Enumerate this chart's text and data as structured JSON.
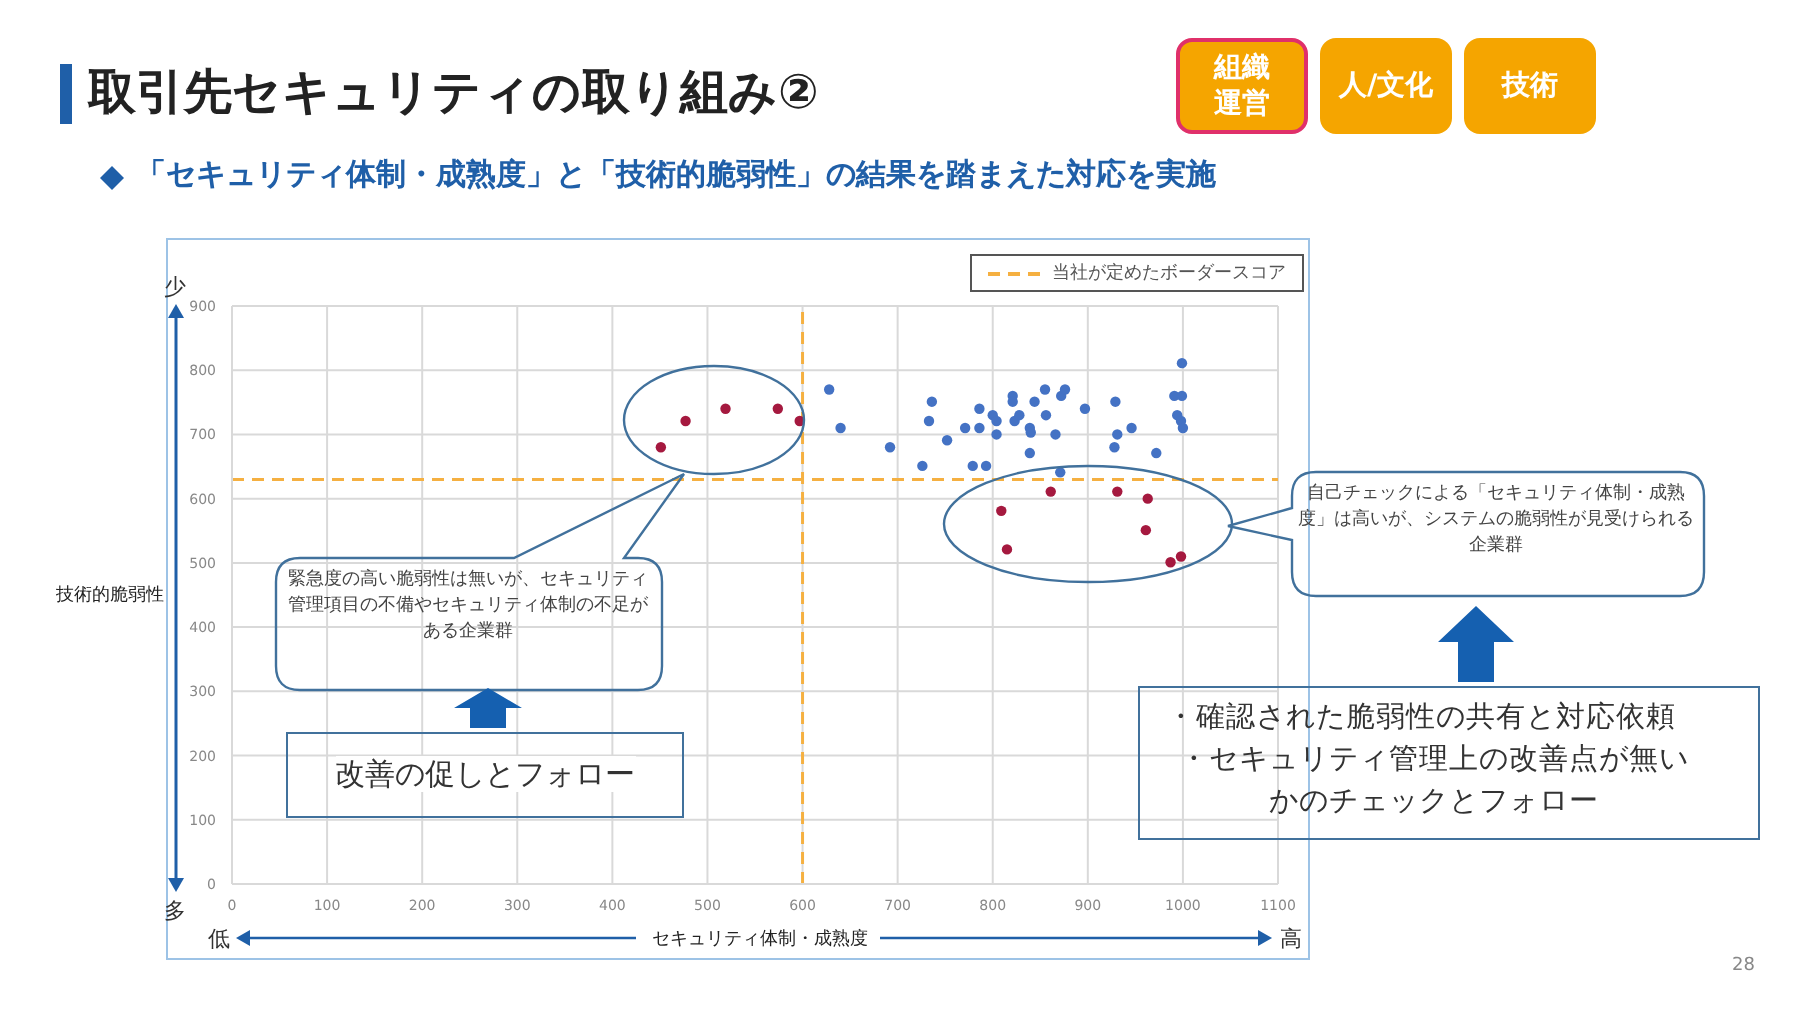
{
  "chart_data": {
    "type": "scatter",
    "title": "取引先セキュリティの取り組み②",
    "subtitle": "「セキュリティ体制・成熟度」と「技術的脆弱性」の結果を踏まえた対応を実施",
    "xlabel": "セキュリティ体制・成熟度",
    "ylabel": "技術的脆弱性",
    "legend": "top right",
    "grid": true,
    "marker": "circle",
    "xlim": [
      0,
      1100
    ],
    "xticks": [
      0,
      100,
      200,
      300,
      400,
      500,
      600,
      700,
      800,
      900,
      1000,
      1100
    ],
    "ylim": [
      0,
      900
    ],
    "yticks": [
      0,
      100,
      200,
      300,
      400,
      500,
      600,
      700,
      800,
      900
    ],
    "ref_lines": [
      {
        "axis": "x",
        "value": 600,
        "label": "当社が定めたボーダースコア",
        "color": "#f5b041",
        "line_style": "dashed"
      },
      {
        "axis": "y",
        "value": 630,
        "color": "#f5b041",
        "line_style": "dashed"
      }
    ],
    "series": [
      {
        "color": "#4472c4",
        "x": [
          628,
          640,
          692,
          726,
          736,
          733,
          752,
          771,
          786,
          786,
          779,
          793,
          800,
          804,
          804,
          821,
          821,
          823,
          828,
          844,
          839,
          840,
          839,
          855,
          856,
          866,
          872,
          876,
          871,
          897,
          929,
          931,
          928,
          946,
          972,
          999,
          991,
          999,
          994,
          998,
          1000
        ],
        "values": [
          770,
          710,
          680,
          651,
          751,
          721,
          691,
          710,
          740,
          710,
          651,
          651,
          730,
          721,
          700,
          760,
          751,
          721,
          730,
          751,
          710,
          703,
          671,
          770,
          730,
          700,
          760,
          770,
          641,
          740,
          751,
          700,
          680,
          710,
          671,
          811,
          760,
          760,
          730,
          721,
          710
        ]
      },
      {
        "color": "#a5193f",
        "x": [
          451,
          477,
          519,
          574,
          597,
          861,
          931,
          963,
          809,
          961,
          815,
          987,
          998
        ],
        "values": [
          680,
          721,
          740,
          740,
          721,
          611,
          611,
          600,
          581,
          551,
          521,
          501,
          510
        ]
      }
    ],
    "annotations": [
      "緊急度の高い脆弱性は無いが、セキュリティ管理項目の不備やセキュリティ体制の不足がある企業群",
      "改善の促しとフォロー",
      "自己チェックによる「セキュリティ体制・成熟度」は高いが、システムの脆弱性が見受けられる企業群",
      "・確認された脆弱性の共有と対応依頼",
      "・セキュリティ管理上の改善点が無いかのチェックとフォロー",
      "少",
      "多",
      "低",
      "高",
      "組織運営",
      "人/文化",
      "技術",
      "28"
    ]
  }
}
